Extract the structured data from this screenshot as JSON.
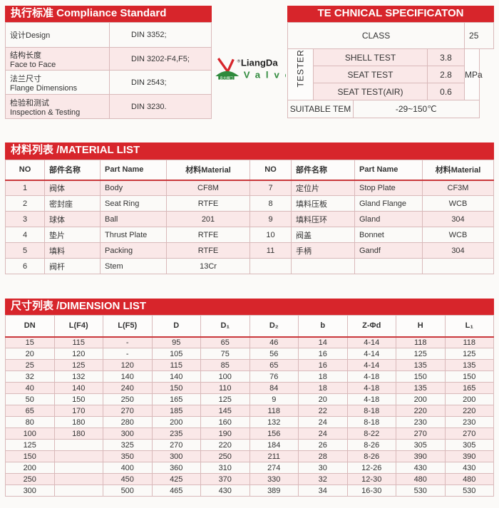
{
  "compliance": {
    "title": "执行标准 Compliance Standard",
    "rows": [
      {
        "cn": "设计Design",
        "en": "",
        "value": "DIN 3352;"
      },
      {
        "cn": "结构长度",
        "en": "Face to Face",
        "value": "DIN 3202-F4,F5;"
      },
      {
        "cn": "法兰尺寸",
        "en": "Flange Dimensions",
        "value": "DIN 2543;"
      },
      {
        "cn": "检验和测试",
        "en": "Inspection & Testing",
        "value": "DIN 3230."
      }
    ]
  },
  "technical": {
    "title": "TE CHNICAL SPECIFICATON",
    "class_label": "CLASS",
    "class_value": "25",
    "tester_label": "TESTER",
    "unit": "MPa",
    "tests": [
      {
        "label": "SHELL TEST",
        "value": "3.8"
      },
      {
        "label": "SEAT TEST",
        "value": "2.8"
      },
      {
        "label": "SEAT TEST(AIR)",
        "value": "0.6"
      }
    ],
    "temp_label": "SUITABLE TEM",
    "temp_value": "-29~150℃"
  },
  "material": {
    "title": "材料列表 /MATERIAL LIST",
    "headers": [
      "NO",
      "部件名称",
      "Part Name",
      "材料Material",
      "NO",
      "部件名称",
      "Part Name",
      "材料Material"
    ],
    "rows": [
      [
        "1",
        "阀体",
        "Body",
        "CF8M",
        "7",
        "定位片",
        "Stop Plate",
        "CF3M"
      ],
      [
        "2",
        "密封座",
        "Seat Ring",
        "RTFE",
        "8",
        "填料压板",
        "Gland Flange",
        "WCB"
      ],
      [
        "3",
        "球体",
        "Ball",
        "201",
        "9",
        "填料压环",
        "Gland",
        "304"
      ],
      [
        "4",
        "垫片",
        "Thrust Plate",
        "RTFE",
        "10",
        "阀盖",
        "Bonnet",
        "WCB"
      ],
      [
        "5",
        "填料",
        "Packing",
        "RTFE",
        "11",
        "手柄",
        "Gandf",
        "304"
      ],
      [
        "6",
        "阀杆",
        "Stem",
        "13Cr",
        "",
        "",
        "",
        ""
      ]
    ]
  },
  "dimension": {
    "title": "尺寸列表 /DIMENSION LIST",
    "headers": [
      "DN",
      "L(F4)",
      "L(F5)",
      "D",
      "D₁",
      "D₂",
      "b",
      "Z-Φd",
      "H",
      "L₁"
    ],
    "rows": [
      [
        "15",
        "115",
        "-",
        "95",
        "65",
        "46",
        "14",
        "4-14",
        "118",
        "118"
      ],
      [
        "20",
        "120",
        "-",
        "105",
        "75",
        "56",
        "16",
        "4-14",
        "125",
        "125"
      ],
      [
        "25",
        "125",
        "120",
        "115",
        "85",
        "65",
        "16",
        "4-14",
        "135",
        "135"
      ],
      [
        "32",
        "132",
        "140",
        "140",
        "100",
        "76",
        "18",
        "4-18",
        "150",
        "150"
      ],
      [
        "40",
        "140",
        "240",
        "150",
        "110",
        "84",
        "18",
        "4-18",
        "135",
        "165"
      ],
      [
        "50",
        "150",
        "250",
        "165",
        "125",
        "9",
        "20",
        "4-18",
        "200",
        "200"
      ],
      [
        "65",
        "170",
        "270",
        "185",
        "145",
        "118",
        "22",
        "8-18",
        "220",
        "220"
      ],
      [
        "80",
        "180",
        "280",
        "200",
        "160",
        "132",
        "24",
        "8-18",
        "230",
        "230"
      ],
      [
        "100",
        "180",
        "300",
        "235",
        "190",
        "156",
        "24",
        "8-22",
        "270",
        "270"
      ],
      [
        "125",
        "",
        "325",
        "270",
        "220",
        "184",
        "26",
        "8-26",
        "305",
        "305"
      ],
      [
        "150",
        "",
        "350",
        "300",
        "250",
        "211",
        "28",
        "8-26",
        "390",
        "390"
      ],
      [
        "200",
        "",
        "400",
        "360",
        "310",
        "274",
        "30",
        "12-26",
        "430",
        "430"
      ],
      [
        "250",
        "",
        "450",
        "425",
        "370",
        "330",
        "32",
        "12-30",
        "480",
        "480"
      ],
      [
        "300",
        "",
        "500",
        "465",
        "430",
        "389",
        "34",
        "16-30",
        "530",
        "530"
      ]
    ]
  },
  "logo": {
    "brand": "LiangDa",
    "sub": "Valve",
    "cn": "良大阀门",
    "mark": "®"
  },
  "colors": {
    "accent": "#d7252b",
    "row_tint": "#fae8e8"
  }
}
